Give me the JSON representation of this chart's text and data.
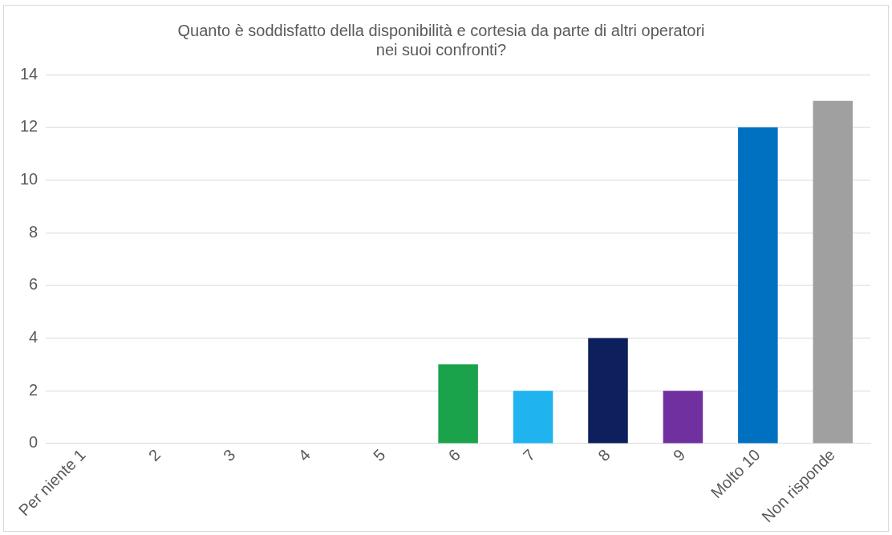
{
  "chart_data": {
    "type": "bar",
    "title": "Quanto è soddisfatto della disponibilità e cortesia da parte di altri operatori\nnei suoi confronti?",
    "categories": [
      "Per niente 1",
      "2",
      "3",
      "4",
      "5",
      "6",
      "7",
      "8",
      "9",
      "Molto 10",
      "Non risponde"
    ],
    "values": [
      0,
      0,
      0,
      0,
      0,
      3,
      2,
      4,
      2,
      12,
      13
    ],
    "colors": [
      "#4472c4",
      "#4472c4",
      "#4472c4",
      "#4472c4",
      "#4472c4",
      "#1aa34a",
      "#1fb3f0",
      "#0d1f5c",
      "#7030a0",
      "#0070c0",
      "#a0a0a0"
    ],
    "ylim": [
      0,
      14
    ],
    "yticks": [
      0,
      2,
      4,
      6,
      8,
      10,
      12,
      14
    ],
    "grid": "y"
  }
}
